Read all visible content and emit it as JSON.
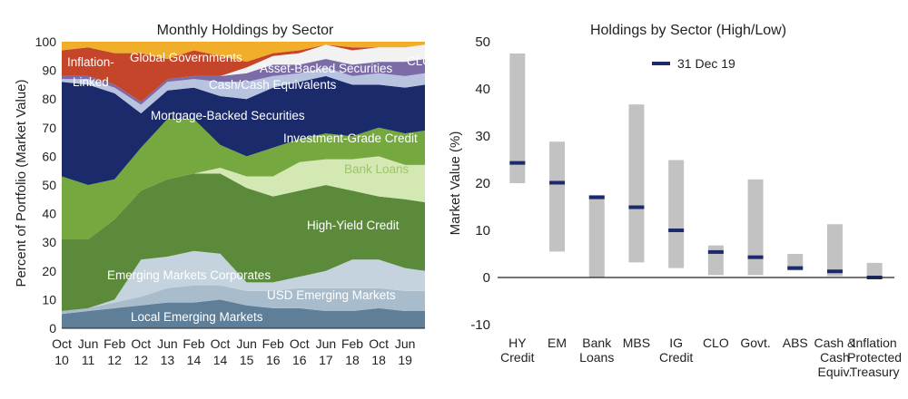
{
  "colors": {
    "local_em": "#5f7f99",
    "usd_em": "#a9bccb",
    "em_corporates": "#c5d3de",
    "high_yield": "#5a8a3a",
    "bank_loans": "#d3e8b3",
    "ig_credit": "#76a840",
    "mbs": "#1b2a6b",
    "cash": "#b8c3df",
    "abs": "#7b6ba6",
    "clo": "#f2f2f2",
    "govt": "#c4452a",
    "tips": "#f0ae2a",
    "range_bar": "#c2c2c2",
    "marker": "#1b2a6b"
  },
  "chart_data": [
    {
      "type": "area",
      "stacked": true,
      "title": "Monthly Holdings by Sector",
      "xlabel": "",
      "ylabel": "Percent of Portfolio (Market Value)",
      "ylim": [
        0,
        100
      ],
      "yticks": [
        0,
        10,
        20,
        30,
        40,
        50,
        60,
        70,
        80,
        90,
        100
      ],
      "xlim": [
        0,
        110
      ],
      "xticks": [
        {
          "x": 0,
          "line1": "Oct",
          "line2": "10"
        },
        {
          "x": 8,
          "line1": "Jun",
          "line2": "11"
        },
        {
          "x": 16,
          "line1": "Feb",
          "line2": "12"
        },
        {
          "x": 24,
          "line1": "Oct",
          "line2": "12"
        },
        {
          "x": 32,
          "line1": "Jun",
          "line2": "13"
        },
        {
          "x": 40,
          "line1": "Feb",
          "line2": "14"
        },
        {
          "x": 48,
          "line1": "Oct",
          "line2": "14"
        },
        {
          "x": 56,
          "line1": "Jun",
          "line2": "15"
        },
        {
          "x": 64,
          "line1": "Feb",
          "line2": "16"
        },
        {
          "x": 72,
          "line1": "Oct",
          "line2": "16"
        },
        {
          "x": 80,
          "line1": "Jun",
          "line2": "17"
        },
        {
          "x": 88,
          "line1": "Feb",
          "line2": "18"
        },
        {
          "x": 96,
          "line1": "Oct",
          "line2": "18"
        },
        {
          "x": 104,
          "line1": "Jun",
          "line2": "19"
        }
      ],
      "x": [
        0,
        8,
        16,
        24,
        32,
        40,
        48,
        56,
        64,
        72,
        80,
        88,
        96,
        104,
        110
      ],
      "series": [
        {
          "name": "Local Emerging Markets",
          "color_key": "local_em",
          "values": [
            5,
            6,
            7,
            8,
            9,
            9,
            10,
            8,
            7,
            7,
            6,
            6,
            7,
            6,
            6
          ]
        },
        {
          "name": "USD Emerging Markets",
          "color_key": "usd_em",
          "values": [
            1,
            1,
            2,
            3,
            5,
            6,
            5,
            5,
            6,
            7,
            8,
            8,
            7,
            7,
            7
          ]
        },
        {
          "name": "Emerging Markets Corporates",
          "color_key": "em_corporates",
          "values": [
            0,
            0,
            1,
            13,
            11,
            12,
            11,
            3,
            3,
            4,
            6,
            10,
            10,
            8,
            7
          ]
        },
        {
          "name": "High-Yield Credit",
          "color_key": "high_yield",
          "values": [
            25,
            24,
            28,
            24,
            27,
            27,
            28,
            33,
            30,
            30,
            30,
            24,
            22,
            24,
            24
          ]
        },
        {
          "name": "Bank Loans",
          "color_key": "bank_loans",
          "values": [
            0,
            0,
            0,
            0,
            0,
            0,
            2,
            4,
            7,
            10,
            9,
            11,
            14,
            12,
            13
          ]
        },
        {
          "name": "Investment-Grade Credit",
          "color_key": "ig_credit",
          "values": [
            22,
            19,
            14,
            15,
            21,
            19,
            8,
            7,
            10,
            8,
            9,
            8,
            10,
            11,
            12
          ]
        },
        {
          "name": "Mortgage-Backed Securities",
          "color_key": "mbs",
          "values": [
            33,
            35,
            30,
            12,
            10,
            11,
            17,
            20,
            21,
            20,
            20,
            18,
            15,
            16,
            16
          ]
        },
        {
          "name": "Cash/Cash Equivalents",
          "color_key": "cash",
          "values": [
            1,
            2,
            2,
            3,
            3,
            3,
            5,
            6,
            4,
            3,
            3,
            3,
            4,
            4,
            4
          ]
        },
        {
          "name": "Asset-Backed Securities",
          "color_key": "abs",
          "values": [
            1,
            1,
            1,
            1,
            1,
            1,
            2,
            3,
            4,
            3,
            3,
            4,
            4,
            5,
            5
          ]
        },
        {
          "name": "CLO",
          "color_key": "clo",
          "values": [
            0,
            0,
            0,
            0,
            0,
            0,
            0,
            2,
            3,
            4,
            5,
            5,
            5,
            5,
            5
          ]
        },
        {
          "name": "Global Governments",
          "color_key": "govt",
          "values": [
            9,
            10,
            11,
            17,
            7,
            9,
            7,
            2,
            1,
            1,
            0,
            1,
            0,
            0,
            0
          ]
        },
        {
          "name": "Inflation-Linked",
          "color_key": "tips",
          "values": [
            3,
            2,
            4,
            4,
            6,
            3,
            5,
            7,
            4,
            3,
            1,
            2,
            2,
            2,
            1
          ]
        }
      ],
      "labels": [
        {
          "text": "Inflation-",
          "color": "#ffffff"
        },
        {
          "text": "Linked",
          "color": "#ffffff"
        },
        {
          "text": "Global Governments",
          "color": "#ffffff"
        },
        {
          "text": "Asset-Backed Securities",
          "color": "#ffffff"
        },
        {
          "text": "CLO",
          "color": "#ffffff"
        },
        {
          "text": "Cash/Cash Equivalents",
          "color": "#ffffff"
        },
        {
          "text": "Mortgage-Backed Securities",
          "color": "#ffffff"
        },
        {
          "text": "Investment-Grade Credit",
          "color": "#ffffff"
        },
        {
          "text": "Bank Loans",
          "color": "#9fc46c"
        },
        {
          "text": "High-Yield Credit",
          "color": "#ffffff"
        },
        {
          "text": "Emerging Markets Corporates",
          "color": "#ffffff"
        },
        {
          "text": "USD Emerging Markets",
          "color": "#ffffff"
        },
        {
          "text": "Local Emerging Markets",
          "color": "#ffffff"
        }
      ]
    },
    {
      "type": "bar",
      "subtype": "range",
      "title": "Holdings by Sector (High/Low)",
      "xlabel": "",
      "ylabel": "Market Value (%)",
      "ylim": [
        -10,
        50
      ],
      "yticks": [
        -10,
        0,
        10,
        20,
        30,
        40,
        50
      ],
      "legend": {
        "label": "31 Dec 19",
        "position": "top-center"
      },
      "categories": [
        [
          "HY",
          "Credit"
        ],
        [
          "EM"
        ],
        [
          "Bank",
          "Loans"
        ],
        [
          "MBS"
        ],
        [
          "IG",
          "Credit"
        ],
        [
          "CLO"
        ],
        [
          "Govt."
        ],
        [
          "ABS"
        ],
        [
          "Cash &",
          "Cash",
          "Equiv."
        ],
        [
          "Inflation",
          "Protected",
          "Treasury"
        ]
      ],
      "low": [
        20.0,
        5.5,
        0.0,
        3.2,
        2.0,
        0.5,
        0.5,
        1.5,
        0.3,
        0.0
      ],
      "high": [
        47.5,
        28.8,
        17.5,
        36.7,
        24.9,
        6.8,
        20.8,
        5.0,
        11.3,
        3.1
      ],
      "current": [
        24.3,
        20.1,
        17.0,
        14.9,
        10.0,
        5.4,
        4.3,
        2.0,
        1.3,
        0.0
      ]
    }
  ]
}
